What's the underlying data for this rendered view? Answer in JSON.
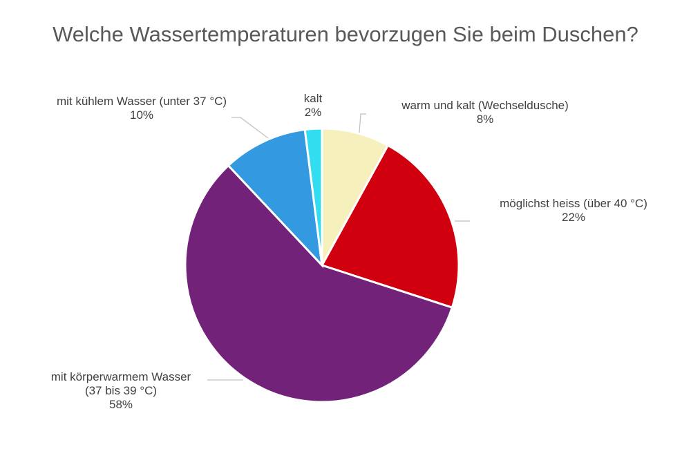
{
  "chart_data": {
    "type": "pie",
    "title": "Welche Wassertemperaturen bevorzugen Sie beim Duschen?",
    "start_angle_deg": 0,
    "direction": "clockwise",
    "slices": [
      {
        "label": "warm und kalt (Wechseldusche)",
        "value": 8,
        "value_label": "8%",
        "color": "#f5f0bc"
      },
      {
        "label": "möglichst heiss (über 40 °C)",
        "value": 22,
        "value_label": "22%",
        "color": "#d0000f"
      },
      {
        "label": "mit körperwarmem Wasser (37 bis 39 °C)",
        "label_lines": [
          "mit körperwarmem Wasser",
          "(37 bis 39 °C)"
        ],
        "value": 58,
        "value_label": "58%",
        "color": "#722379"
      },
      {
        "label": "mit kühlem Wasser (unter 37 °C)",
        "value": 10,
        "value_label": "10%",
        "color": "#3399e0"
      },
      {
        "label": "kalt",
        "value": 2,
        "value_label": "2%",
        "color": "#33ddf0"
      }
    ]
  }
}
